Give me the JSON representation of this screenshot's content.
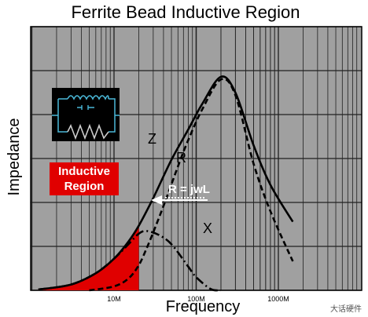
{
  "chart_data": {
    "type": "line",
    "title": "Ferrite Bead Inductive Region",
    "xlabel": "Frequency",
    "ylabel": "Impedance",
    "x_scale": "log",
    "x_ticks": [
      {
        "value": 10,
        "label": "10M"
      },
      {
        "value": 100,
        "label": "100M"
      },
      {
        "value": 1000,
        "label": "1000M"
      }
    ],
    "x_unit": "MHz",
    "grid": true,
    "series": [
      {
        "name": "Z",
        "style": "solid",
        "color": "#000000",
        "x": [
          1.2,
          3,
          6,
          10,
          15,
          20,
          30,
          50,
          80,
          120,
          200,
          300,
          500,
          800,
          1500
        ],
        "y": [
          0.3,
          2.2,
          6.5,
          12,
          18.5,
          24.5,
          35,
          49.5,
          61,
          71,
          81,
          75,
          55,
          40,
          26
        ]
      },
      {
        "name": "R",
        "style": "dashed",
        "color": "#000000",
        "x": [
          5,
          10,
          15,
          20,
          25,
          30,
          40,
          60,
          80,
          120,
          200,
          300,
          500,
          800,
          1500
        ],
        "y": [
          0,
          1.5,
          4.5,
          9.5,
          16,
          22,
          32,
          47,
          57,
          69,
          80,
          74,
          48,
          30,
          11
        ]
      },
      {
        "name": "X",
        "style": "dashdot",
        "color": "#000000",
        "x": [
          1.2,
          3,
          6,
          10,
          15,
          20,
          25,
          35,
          50,
          80,
          100,
          150,
          200
        ],
        "y": [
          0.3,
          2.2,
          6.5,
          12,
          17.5,
          21.5,
          22.5,
          21,
          17.5,
          9,
          5,
          0.5,
          0
        ]
      }
    ],
    "annotations": [
      {
        "text": "Inductive Region",
        "lines": [
          "Inductive",
          "Region"
        ],
        "color": "#e00000"
      },
      {
        "text": "R = jwL",
        "x": 50,
        "y": 24,
        "arrow_to_x": 20,
        "arrow_to_y": 24
      }
    ],
    "shaded_region": {
      "label": "Inductive Region",
      "x_end": 20,
      "color": "#e00000"
    },
    "colors": {
      "plot_background": "#a0a0a0",
      "grid": "#202020",
      "inductive": "#e00000",
      "inset_background": "#000000",
      "inset_inductor": "#4ab8d8",
      "inset_resistor": "#cccccc"
    }
  },
  "watermark": "大话硬件",
  "inset_icon": "ferrite-bead-equivalent-circuit-icon"
}
